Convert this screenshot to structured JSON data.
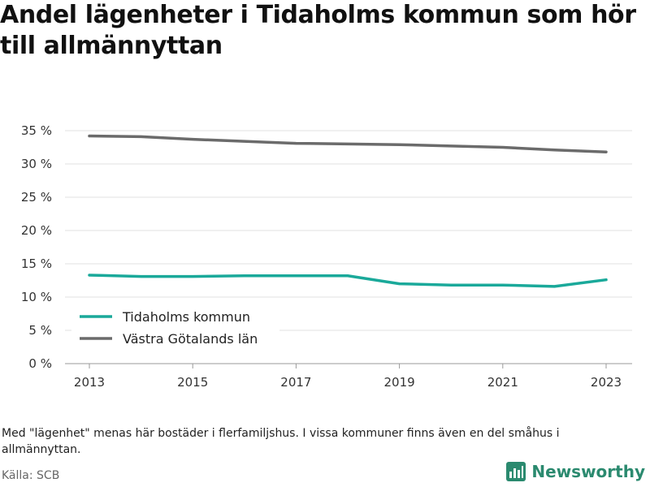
{
  "header": {
    "title": "Andel lägenheter i Tidaholms kommun som hör till allmännyttan"
  },
  "chart_data": {
    "type": "line",
    "x": [
      2013,
      2014,
      2015,
      2016,
      2017,
      2018,
      2019,
      2020,
      2021,
      2022,
      2023
    ],
    "x_ticks": [
      "2013",
      "2015",
      "2017",
      "2019",
      "2021",
      "2023"
    ],
    "y_ticks": [
      "0 %",
      "5 %",
      "10 %",
      "15 %",
      "20 %",
      "25 %",
      "30 %",
      "35 %"
    ],
    "ylim": [
      0,
      35
    ],
    "xlim": [
      2013,
      2023
    ],
    "grid": true,
    "legend_position": "bottom-left",
    "series": [
      {
        "name": "Tidaholms kommun",
        "color": "#1aa99a",
        "values": [
          13.3,
          13.1,
          13.1,
          13.2,
          13.2,
          13.2,
          12.0,
          11.8,
          11.8,
          11.6,
          12.6
        ]
      },
      {
        "name": "Västra Götalands län",
        "color": "#6b6b6b",
        "values": [
          34.2,
          34.1,
          33.7,
          33.4,
          33.1,
          33.0,
          32.9,
          32.7,
          32.5,
          32.1,
          31.8
        ]
      }
    ]
  },
  "footer": {
    "note": "Med \"lägenhet\" menas här bostäder i flerfamiljshus. I vissa kommuner finns även en del småhus i allmännyttan.",
    "source": "Källa: SCB",
    "brand": "Newsworthy",
    "brand_color": "#2b8a6f"
  }
}
